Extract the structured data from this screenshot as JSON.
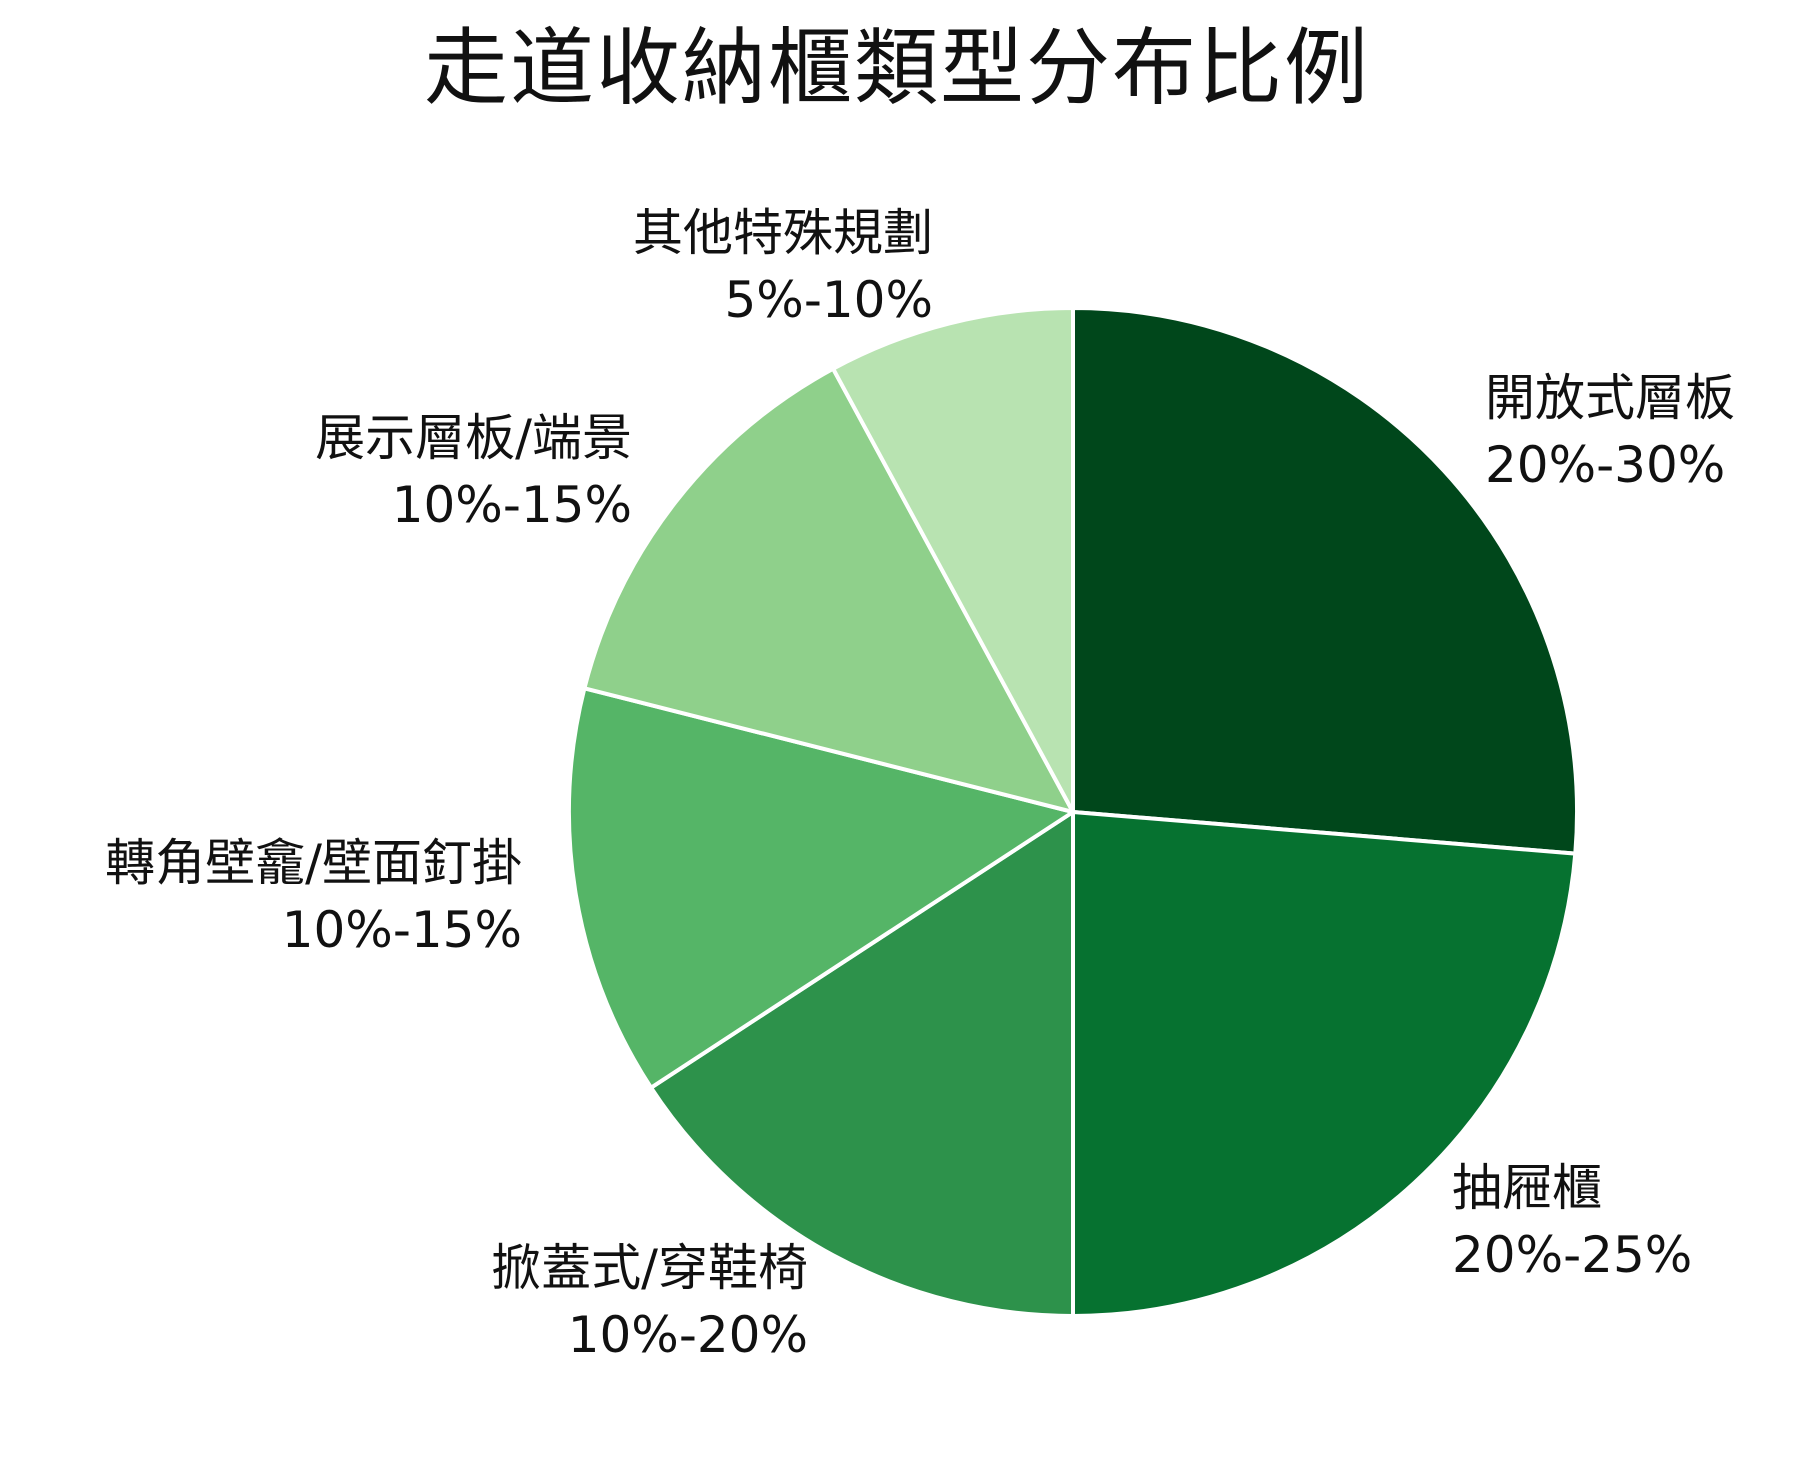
{
  "chart_data": {
    "type": "pie",
    "title": "走道收納櫃類型分布比例",
    "slices": [
      {
        "name": "開放式層板",
        "range_label": "20%-30%",
        "value": 25,
        "color": "#00471b"
      },
      {
        "name": "抽屜櫃",
        "range_label": "20%-25%",
        "value": 22.5,
        "color": "#067230"
      },
      {
        "name": "掀蓋式/穿鞋椅",
        "range_label": "10%-20%",
        "value": 15,
        "color": "#2d924b"
      },
      {
        "name": "轉角壁龕/壁面釘掛",
        "range_label": "10%-15%",
        "value": 12.5,
        "color": "#55b567"
      },
      {
        "name": "展示層板/端景",
        "range_label": "10%-15%",
        "value": 12.5,
        "color": "#8fd08b"
      },
      {
        "name": "其他特殊規劃",
        "range_label": "5%-10%",
        "value": 7.5,
        "color": "#b8e3b1"
      }
    ],
    "start_angle": "top",
    "direction": "clockwise",
    "legend": "none"
  }
}
